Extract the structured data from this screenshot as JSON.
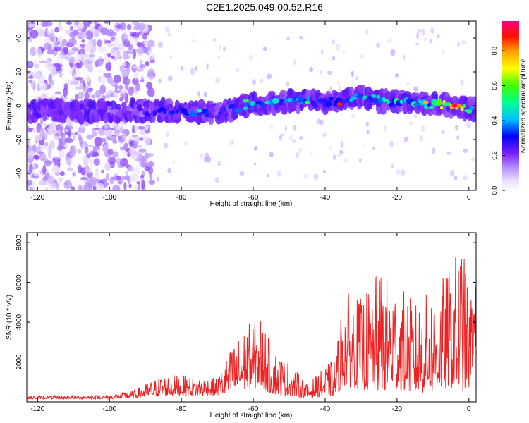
{
  "title": "C2E1.2025.049.00.52.R16",
  "chart_data": [
    {
      "type": "heatmap",
      "xlabel": "Height of straight line (km)",
      "ylabel": "Frequency (Hz)",
      "xlim": [
        -123,
        2
      ],
      "ylim": [
        -50,
        50
      ],
      "xticks": [
        -120,
        -100,
        -80,
        -60,
        -40,
        -20,
        0
      ],
      "yticks": [
        -40,
        -20,
        0,
        20,
        40
      ],
      "colorbar": {
        "label": "Normalized spectral amplitude",
        "range": [
          0,
          0.97
        ],
        "ticks": [
          0.0,
          0.2,
          0.4,
          0.6,
          0.8
        ],
        "tick_labels": [
          "0.0",
          "0.2",
          "0.4",
          "0.6",
          "0.8"
        ],
        "colormap": [
          "#ffffff",
          "#e0d0ff",
          "#8a2be2",
          "#6a00ff",
          "#0000ff",
          "#00c8ff",
          "#00ff80",
          "#ffff00",
          "#ff8000",
          "#ff0000",
          "#ff007f"
        ]
      },
      "ridge": {
        "description_points": [
          {
            "x": -110,
            "y": -3,
            "amp": 0.1
          },
          {
            "x": -90,
            "y": -3,
            "amp": 0.25
          },
          {
            "x": -80,
            "y": -3,
            "amp": 0.35
          },
          {
            "x": -70,
            "y": -4,
            "amp": 0.3
          },
          {
            "x": -60,
            "y": 1,
            "amp": 0.45
          },
          {
            "x": -50,
            "y": 3,
            "amp": 0.4
          },
          {
            "x": -40,
            "y": 2,
            "amp": 0.4
          },
          {
            "x": -30,
            "y": 5,
            "amp": 0.45
          },
          {
            "x": -20,
            "y": 2,
            "amp": 0.5
          },
          {
            "x": -10,
            "y": 1,
            "amp": 0.55
          },
          {
            "x": -5,
            "y": 0,
            "amp": 0.9
          },
          {
            "x": 0,
            "y": -2,
            "amp": 0.6
          }
        ]
      },
      "grid": false
    },
    {
      "type": "line",
      "xlabel": "Height of straight line (km)",
      "ylabel": "SNR (10 * v/v)",
      "xlim": [
        -123,
        2
      ],
      "ylim": [
        0,
        8500
      ],
      "xticks": [
        -120,
        -100,
        -80,
        -60,
        -40,
        -20,
        0
      ],
      "yticks": [
        2000,
        4000,
        6000,
        8000
      ],
      "line_color": "#ee2222",
      "envelope": [
        {
          "x": -123,
          "base": 150,
          "peak": 300
        },
        {
          "x": -100,
          "base": 150,
          "peak": 350
        },
        {
          "x": -93,
          "base": 200,
          "peak": 600
        },
        {
          "x": -85,
          "base": 300,
          "peak": 1400
        },
        {
          "x": -70,
          "base": 300,
          "peak": 1200
        },
        {
          "x": -66,
          "base": 400,
          "peak": 2800
        },
        {
          "x": -62,
          "base": 600,
          "peak": 3800
        },
        {
          "x": -58,
          "base": 700,
          "peak": 4500
        },
        {
          "x": -55,
          "base": 400,
          "peak": 2800
        },
        {
          "x": -50,
          "base": 300,
          "peak": 2000
        },
        {
          "x": -45,
          "base": 200,
          "peak": 900
        },
        {
          "x": -37,
          "base": 300,
          "peak": 2300
        },
        {
          "x": -35,
          "base": 800,
          "peak": 5700
        },
        {
          "x": -30,
          "base": 600,
          "peak": 5200
        },
        {
          "x": -25,
          "base": 500,
          "peak": 6600
        },
        {
          "x": -20,
          "base": 600,
          "peak": 6000
        },
        {
          "x": -15,
          "base": 400,
          "peak": 5000
        },
        {
          "x": -10,
          "base": 500,
          "peak": 5700
        },
        {
          "x": -5,
          "base": 700,
          "peak": 6800
        },
        {
          "x": -2,
          "base": 500,
          "peak": 8300
        },
        {
          "x": 0,
          "base": 600,
          "peak": 5500
        },
        {
          "x": 2,
          "base": 3000,
          "peak": 6000
        }
      ],
      "grid": false
    }
  ]
}
